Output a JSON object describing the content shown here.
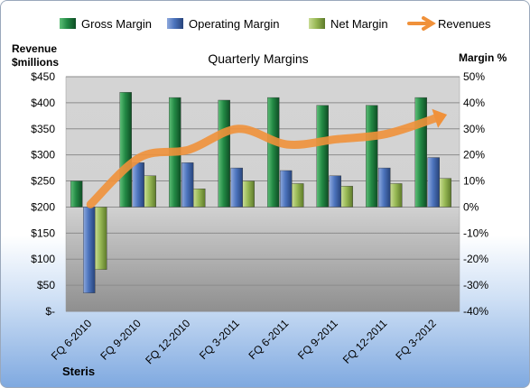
{
  "chart_data": {
    "type": "bar",
    "title": "Quarterly Margins",
    "company": "Steris",
    "ylabel_left": [
      "Revenue",
      "$millions"
    ],
    "ylabel_right": "Margin %",
    "categories": [
      "FQ 6-2010",
      "FQ 9-2010",
      "FQ 12-2010",
      "FQ 3-2011",
      "FQ 6-2011",
      "FQ 9-2011",
      "FQ 12-2011",
      "FQ 3-2012"
    ],
    "left_axis": {
      "min": 0,
      "max": 450,
      "step": 50,
      "tick_labels": [
        "$-",
        "$50",
        "$100",
        "$150",
        "$200",
        "$250",
        "$300",
        "$350",
        "$400",
        "$450"
      ]
    },
    "right_axis": {
      "min": -40,
      "max": 50,
      "step": 10,
      "tick_labels": [
        "-40%",
        "-30%",
        "-20%",
        "-10%",
        "0%",
        "10%",
        "20%",
        "30%",
        "40%",
        "50%"
      ]
    },
    "series": [
      {
        "name": "Gross Margin",
        "type": "bar",
        "axis": "right",
        "color": "#1f7a3c",
        "values": [
          10,
          44,
          42,
          41,
          42,
          39,
          39,
          42
        ]
      },
      {
        "name": "Operating Margin",
        "type": "bar",
        "axis": "right",
        "color": "#3f66b0",
        "values": [
          -33,
          17,
          17,
          15,
          14,
          12,
          15,
          19
        ]
      },
      {
        "name": "Net Margin",
        "type": "bar",
        "axis": "right",
        "color": "#8fb04a",
        "values": [
          -24,
          12,
          7,
          10,
          9,
          8,
          9,
          11
        ]
      },
      {
        "name": "Revenues",
        "type": "line",
        "axis": "left",
        "color": "#f0913a",
        "values": [
          205,
          295,
          310,
          350,
          320,
          330,
          340,
          370
        ]
      }
    ],
    "grid": true,
    "legend_position": "top"
  }
}
